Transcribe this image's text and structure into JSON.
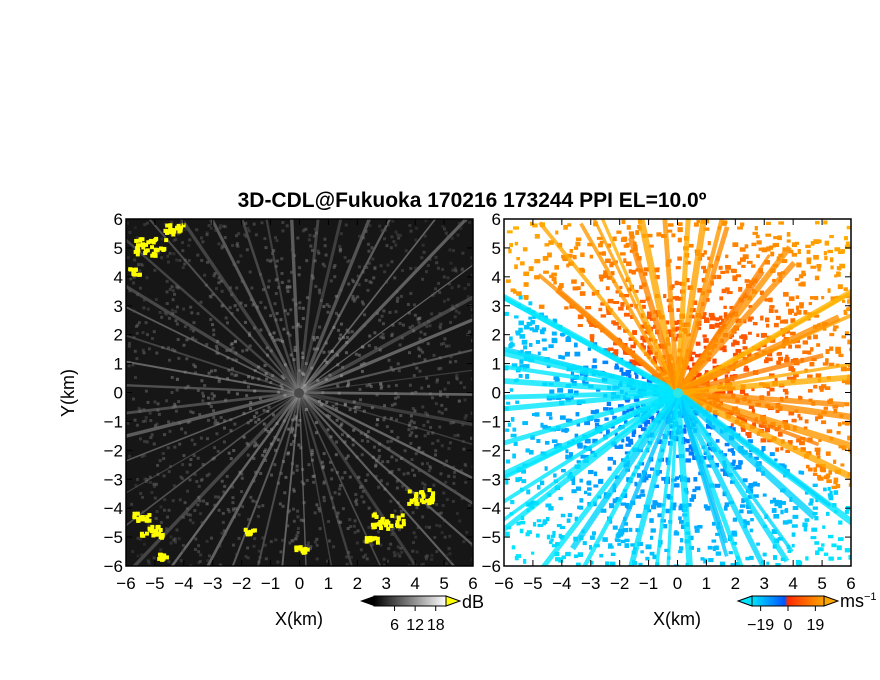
{
  "chart_data": [
    {
      "type": "heatmap",
      "title": "3D-CDL@Fukuoka 170216 173244 PPI EL=10.0º",
      "xlabel": "X(km)",
      "ylabel": "Y(km)",
      "xlim": [
        -6,
        6
      ],
      "ylim": [
        -6,
        6
      ],
      "x_ticks": [
        "-6",
        "-5",
        "-4",
        "-3",
        "-2",
        "-1",
        "0",
        "1",
        "2",
        "3",
        "4",
        "5",
        "6"
      ],
      "y_ticks": [
        "-6",
        "-5",
        "-4",
        "-3",
        "-2",
        "-1",
        "0",
        "1",
        "2",
        "3",
        "4",
        "5",
        "6"
      ],
      "colorbar": {
        "unit": "dB",
        "ticks": [
          "6",
          "12",
          "18"
        ],
        "range": [
          0,
          21
        ],
        "palette": [
          "#000000",
          "#ffffff"
        ],
        "overflow_color": "#ffff00"
      },
      "grid": false
    },
    {
      "type": "heatmap",
      "xlabel": "X(km)",
      "ylabel": "",
      "xlim": [
        -6,
        6
      ],
      "ylim": [
        -6,
        6
      ],
      "x_ticks": [
        "-6",
        "-5",
        "-4",
        "-3",
        "-2",
        "-1",
        "0",
        "1",
        "2",
        "3",
        "4",
        "5",
        "6"
      ],
      "y_ticks": [
        "-6",
        "-5",
        "-4",
        "-3",
        "-2",
        "-1",
        "0",
        "1",
        "2",
        "3",
        "4",
        "5",
        "6"
      ],
      "colorbar": {
        "unit": "ms",
        "unit_exponent": "−1",
        "ticks": [
          "−19",
          "0",
          "19"
        ],
        "range": [
          -25,
          25
        ],
        "palette": [
          "#00e5ff",
          "#0055ff",
          "#ff2a00",
          "#ffa500"
        ]
      },
      "grid": false
    }
  ]
}
